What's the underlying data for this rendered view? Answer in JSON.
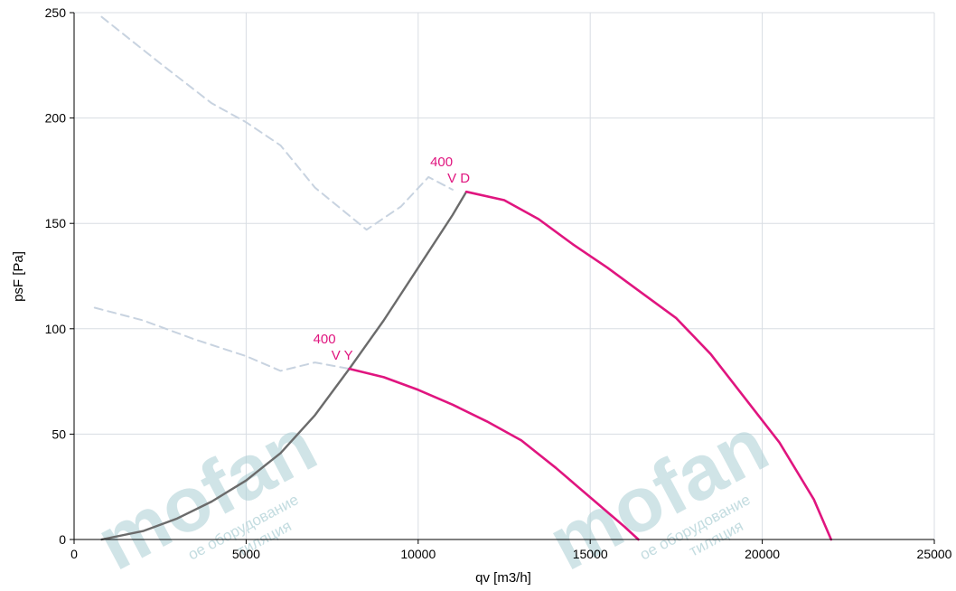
{
  "chart_data": {
    "type": "line",
    "xlabel": "qv [m3/h]",
    "ylabel": "psF [Pa]",
    "xlim": [
      0,
      25000
    ],
    "ylim": [
      0,
      250
    ],
    "xticks": [
      0,
      5000,
      10000,
      15000,
      20000,
      25000
    ],
    "yticks": [
      0,
      50,
      100,
      150,
      200,
      250
    ],
    "xtick_labels": [
      "0",
      "5000",
      "10000",
      "15000",
      "20000",
      "25000"
    ],
    "ytick_labels": [
      "0",
      "50",
      "100",
      "150",
      "200",
      "250"
    ],
    "grid": true,
    "legend": "none",
    "colors": {
      "curve": "#e0157f",
      "system": "#6b6b6b",
      "limit": "#c8d3e0",
      "grid": "#d8dde3",
      "watermark": "#a9cdd3"
    },
    "series": [
      {
        "role": "fan-curve",
        "x": [
          8000,
          9000,
          10000,
          11000,
          12000,
          13000,
          14000,
          15000,
          16000,
          16400
        ],
        "y": [
          81,
          77,
          71,
          64,
          56,
          47,
          34,
          20,
          6,
          0
        ]
      },
      {
        "role": "fan-curve",
        "x": [
          11400,
          12500,
          13500,
          14500,
          15500,
          16500,
          17500,
          18500,
          19500,
          20500,
          21500,
          22000
        ],
        "y": [
          165,
          161,
          152,
          140,
          129,
          117,
          105,
          88,
          67,
          46,
          19,
          0
        ]
      },
      {
        "role": "system-curve",
        "x": [
          800,
          2000,
          3000,
          4000,
          5000,
          6000,
          7000,
          8000,
          9000,
          10000,
          11000,
          11400
        ],
        "y": [
          0,
          4,
          10,
          18,
          28,
          41,
          59,
          81,
          104,
          129,
          154,
          165
        ]
      },
      {
        "role": "limit-curve",
        "x": [
          600,
          2000,
          3500,
          5000,
          6000,
          7000,
          8000
        ],
        "y": [
          110,
          104,
          95,
          87,
          80,
          84,
          81
        ]
      },
      {
        "role": "limit-curve",
        "x": [
          800,
          2500,
          4000,
          5000,
          6000,
          7000,
          8500,
          9500,
          10300,
          11000
        ],
        "y": [
          248,
          226,
          207,
          198,
          187,
          167,
          147,
          158,
          172,
          166
        ]
      }
    ],
    "annotations": [
      {
        "lines": [
          "400",
          "V Y"
        ],
        "x": 8000,
        "y": 81
      },
      {
        "lines": [
          "400",
          "V D"
        ],
        "x": 11400,
        "y": 165
      }
    ]
  },
  "watermark": {
    "brand": "mofan",
    "subtitle": "ое оборудование",
    "subtitle2": "тиляция"
  }
}
